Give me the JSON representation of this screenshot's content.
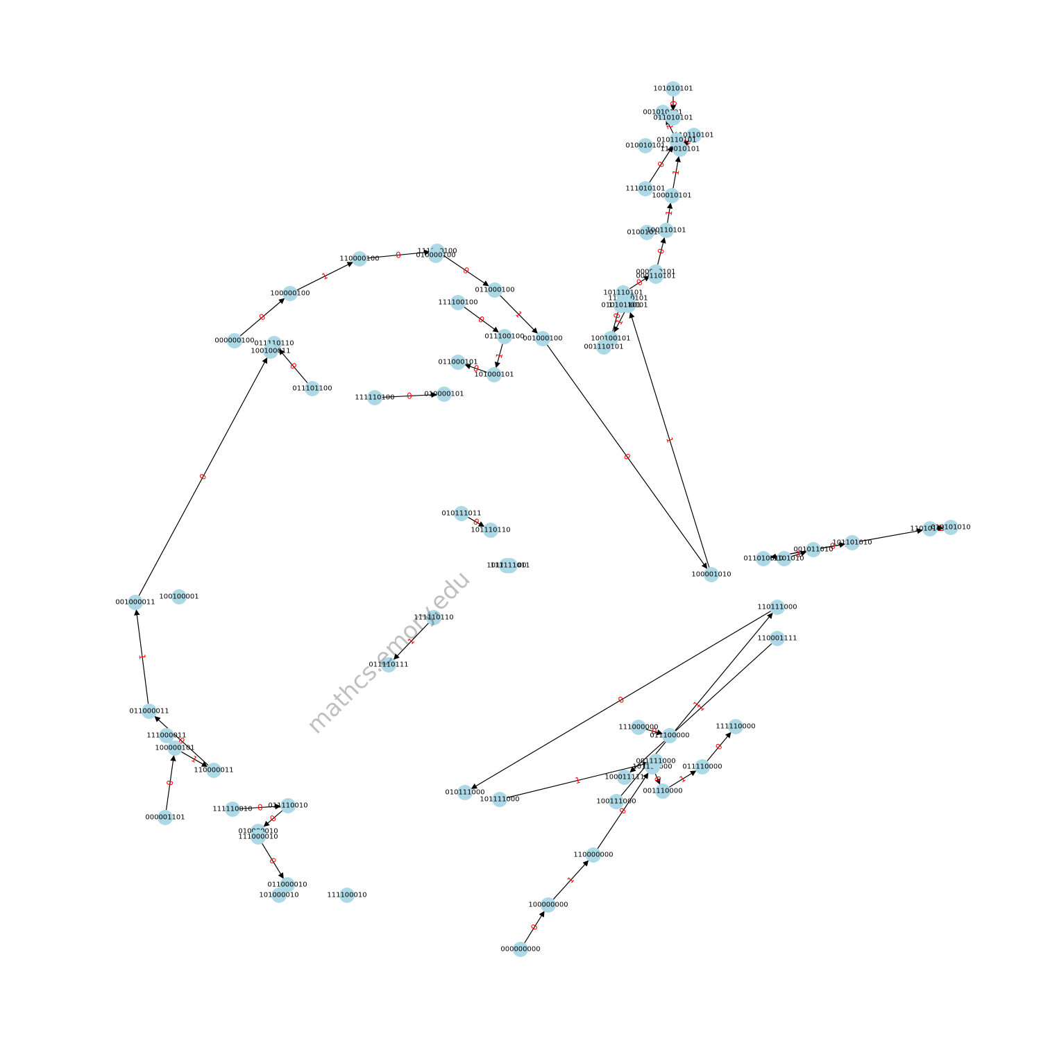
{
  "diagram": {
    "type": "directed-graph",
    "colors": {
      "node": "#add8e6",
      "edge": "#000000",
      "edge_label": "#ff0000",
      "text": "#000000"
    },
    "watermark": "mathcs.emory.edu",
    "nodes": [
      "101010101",
      "001010101",
      "011010101",
      "110110101",
      "010110101",
      "010010101",
      "110010101",
      "111010101",
      "100010101",
      "010010101",
      "100110101",
      "000010101",
      "000110101",
      "110110101",
      "101110101",
      "110100101",
      "010101101",
      "100100101",
      "001110101",
      "111000100",
      "010000100",
      "110000100",
      "100000100",
      "000000100",
      "011000100",
      "111100100",
      "011100100",
      "001000100",
      "011000101",
      "101000101",
      "100001010",
      "111101010",
      "001011010",
      "101101010",
      "011010010",
      "110101010",
      "010101010",
      "101010101",
      "000000000",
      "100000000",
      "110000000",
      "111000000",
      "011100000",
      "101110000",
      "111110000",
      "011110000",
      "001110000",
      "110111000",
      "100111000",
      "010111000",
      "101111000",
      "001111000",
      "000001101",
      "100000101",
      "110000011",
      "111000011",
      "011000011",
      "001000011",
      "100100001",
      "111110010",
      "011110010",
      "010000010",
      "111000010",
      "011000010",
      "101000010",
      "111100010",
      "111110100",
      "010000101",
      "011101100",
      "011110110",
      "100100011",
      "101111100",
      "111111011",
      "010111011",
      "101110110",
      "111110110",
      "011110111",
      "110001111",
      "100011111",
      "000110101"
    ],
    "edges": [
      {
        "from": "000000100",
        "to": "100000100",
        "label": "0"
      },
      {
        "from": "100000100",
        "to": "110000100",
        "label": "1"
      },
      {
        "from": "110000100",
        "to": "111000100",
        "label": "0"
      },
      {
        "from": "111000100",
        "to": "011000100",
        "label": "0"
      },
      {
        "from": "011000100",
        "to": "001000100",
        "label": "1"
      },
      {
        "from": "111100100",
        "to": "011100100",
        "label": "0"
      },
      {
        "from": "011100100",
        "to": "101000101",
        "label": "1"
      },
      {
        "from": "001000100",
        "to": "100001010",
        "label": "0"
      },
      {
        "from": "100001010",
        "to": "110100101",
        "label": "1"
      },
      {
        "from": "110100101",
        "to": "100100101",
        "label": "1"
      },
      {
        "from": "100100101",
        "to": "101110101",
        "label": "0"
      },
      {
        "from": "101110101",
        "to": "000010101",
        "label": "0"
      },
      {
        "from": "000010101",
        "to": "100110101",
        "label": "0"
      },
      {
        "from": "100110101",
        "to": "100010101",
        "label": "1"
      },
      {
        "from": "100010101",
        "to": "110010101",
        "label": "1"
      },
      {
        "from": "110010101",
        "to": "110110101",
        "label": "1"
      },
      {
        "from": "111010101",
        "to": "010110101",
        "label": "0"
      },
      {
        "from": "010110101",
        "to": "001010101",
        "label": "2"
      },
      {
        "from": "101010101",
        "to": "011010101",
        "label": "0"
      },
      {
        "from": "000000000",
        "to": "100000000",
        "label": "0"
      },
      {
        "from": "100000000",
        "to": "110000000",
        "label": "1"
      },
      {
        "from": "110000000",
        "to": "101110000",
        "label": "0"
      },
      {
        "from": "101110000",
        "to": "001110000",
        "label": "0"
      },
      {
        "from": "001110000",
        "to": "011110000",
        "label": "1"
      },
      {
        "from": "011110000",
        "to": "111110000",
        "label": "0"
      },
      {
        "from": "111000000",
        "to": "011100000",
        "label": "0"
      },
      {
        "from": "000001101",
        "to": "100000101",
        "label": "0"
      },
      {
        "from": "100000101",
        "to": "110000011",
        "label": "1"
      },
      {
        "from": "110000011",
        "to": "011000011",
        "label": "0"
      },
      {
        "from": "011000011",
        "to": "001000011",
        "label": "1"
      },
      {
        "from": "001000011",
        "to": "100100011",
        "label": "0"
      },
      {
        "from": "111110010",
        "to": "011110010",
        "label": "0"
      },
      {
        "from": "011110010",
        "to": "010000010",
        "label": "0"
      },
      {
        "from": "010000010",
        "to": "111000010",
        "label": "1"
      },
      {
        "from": "111000010",
        "to": "011000010",
        "label": "0"
      },
      {
        "from": "011000010",
        "to": "101000010",
        "label": "1"
      },
      {
        "from": "100111000",
        "to": "110111000",
        "label": "1"
      },
      {
        "from": "110111000",
        "to": "010111000",
        "label": "0"
      },
      {
        "from": "101111000",
        "to": "001111000",
        "label": "1"
      },
      {
        "from": "101101010",
        "to": "011010010",
        "label": "0"
      },
      {
        "from": "011010010",
        "to": "110101010",
        "label": "2"
      },
      {
        "from": "110101010",
        "to": "010101010",
        "label": "1"
      },
      {
        "from": "001011010",
        "to": "101101010",
        "label": "0"
      },
      {
        "from": "111101010",
        "to": "001011010",
        "label": "1"
      },
      {
        "from": "111110100",
        "to": "010000101",
        "label": "0"
      },
      {
        "from": "011101100",
        "to": "011110110",
        "label": "0"
      },
      {
        "from": "101111100",
        "to": "111111011",
        "label": "0"
      },
      {
        "from": "010111011",
        "to": "101110110",
        "label": "0"
      },
      {
        "from": "111110110",
        "to": "011110111",
        "label": "1"
      },
      {
        "from": "110001111",
        "to": "100011111",
        "label": "1"
      },
      {
        "from": "101000101",
        "to": "011000101",
        "label": "0"
      }
    ]
  }
}
